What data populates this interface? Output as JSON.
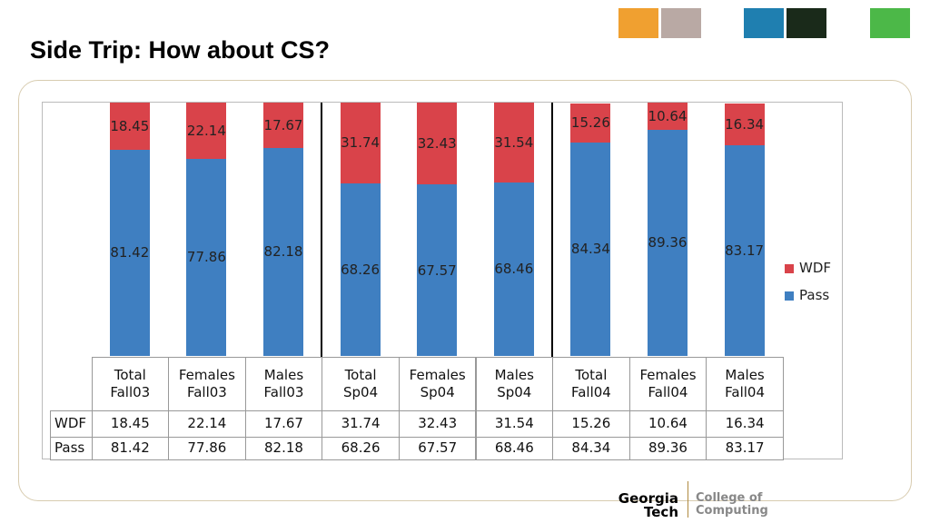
{
  "title": "Side Trip: How about CS?",
  "chart_data": {
    "type": "bar",
    "stacked": true,
    "categories": [
      "Total Fall03",
      "Females Fall03",
      "Males Fall03",
      "Total Sp04",
      "Females Sp04",
      "Males Sp04",
      "Total Fall04",
      "Females Fall04",
      "Males Fall04"
    ],
    "series": [
      {
        "name": "WDF",
        "color": "#d9434a",
        "values": [
          18.45,
          22.14,
          17.67,
          31.74,
          32.43,
          31.54,
          15.26,
          10.64,
          16.34
        ]
      },
      {
        "name": "Pass",
        "color": "#3f7fc1",
        "values": [
          81.42,
          77.86,
          82.18,
          68.26,
          67.57,
          68.46,
          84.34,
          89.36,
          83.17
        ]
      }
    ],
    "ylim": [
      0,
      100
    ],
    "legend": "right"
  },
  "logo": {
    "name": "Georgia Tech",
    "unit": "College of Computing"
  }
}
